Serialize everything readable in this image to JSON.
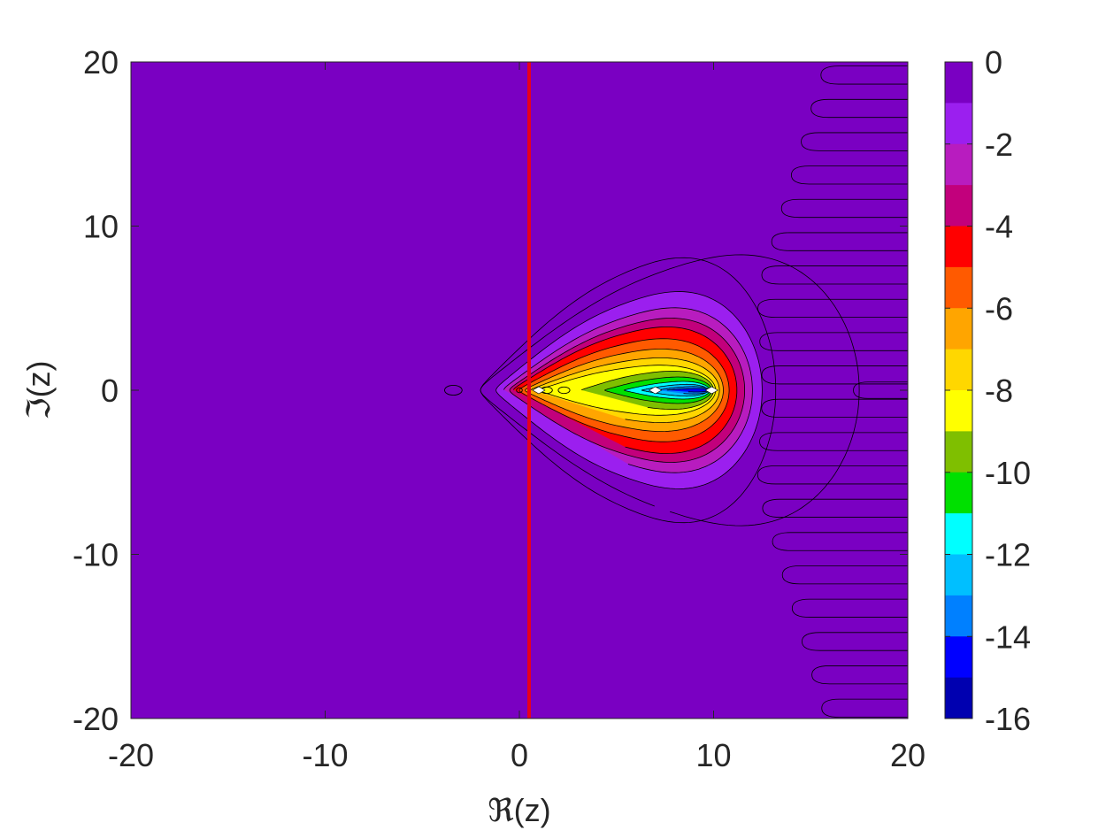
{
  "chart_data": {
    "type": "contour",
    "title": "",
    "xlabel": "ℜ(z)",
    "ylabel": "ℑ(z)",
    "xlim": [
      -20,
      20
    ],
    "ylim": [
      -20,
      20
    ],
    "xticks": [
      "-20",
      "-10",
      "0",
      "10",
      "20"
    ],
    "yticks": [
      "-20",
      "-10",
      "0",
      "10",
      "20"
    ],
    "grid": false,
    "reference_line": {
      "x": 0.5,
      "color": "#e8001c"
    },
    "colorbar": {
      "range": [
        -16,
        0
      ],
      "ticks": [
        "0",
        "-2",
        "-4",
        "-6",
        "-8",
        "-10",
        "-12",
        "-14",
        "-16"
      ],
      "levels": [
        {
          "from": 0,
          "to": -1,
          "color": "#7a00c2"
        },
        {
          "from": -1,
          "to": -2,
          "color": "#9b1fef"
        },
        {
          "from": -2,
          "to": -3,
          "color": "#b81cbf"
        },
        {
          "from": -3,
          "to": -4,
          "color": "#c2007c"
        },
        {
          "from": -4,
          "to": -5,
          "color": "#ff0000"
        },
        {
          "from": -5,
          "to": -6,
          "color": "#ff5a00"
        },
        {
          "from": -6,
          "to": -7,
          "color": "#ffa500"
        },
        {
          "from": -7,
          "to": -8,
          "color": "#ffd700"
        },
        {
          "from": -8,
          "to": -9,
          "color": "#ffff00"
        },
        {
          "from": -9,
          "to": -10,
          "color": "#7fbf00"
        },
        {
          "from": -10,
          "to": -11,
          "color": "#00e000"
        },
        {
          "from": -11,
          "to": -12,
          "color": "#00ffff"
        },
        {
          "from": -12,
          "to": -13,
          "color": "#00bfff"
        },
        {
          "from": -13,
          "to": -14,
          "color": "#0080ff"
        },
        {
          "from": -14,
          "to": -15,
          "color": "#0000ff"
        },
        {
          "from": -15,
          "to": -16,
          "color": "#0000b0"
        }
      ]
    },
    "contour_regions": [
      {
        "level": -1,
        "real_extent": [
          -2.0,
          13.2
        ],
        "imag_halfwidth": 9.0,
        "color": "#7a00c2"
      },
      {
        "level": -2,
        "real_extent": [
          -1.2,
          12.5
        ],
        "imag_halfwidth": 6.7,
        "color": "#9b1fef"
      },
      {
        "level": -3,
        "real_extent": [
          -0.8,
          12.0
        ],
        "imag_halfwidth": 5.6,
        "color": "#b81cbf"
      },
      {
        "level": -4,
        "real_extent": [
          -0.5,
          11.6
        ],
        "imag_halfwidth": 4.9,
        "color": "#c2007c"
      },
      {
        "level": -5,
        "real_extent": [
          -0.3,
          11.2
        ],
        "imag_halfwidth": 4.3,
        "color": "#ff0000"
      },
      {
        "level": -6,
        "real_extent": [
          0.0,
          10.8
        ],
        "imag_halfwidth": 3.5,
        "color": "#ff5a00"
      },
      {
        "level": -7,
        "real_extent": [
          0.3,
          10.5
        ],
        "imag_halfwidth": 2.8,
        "color": "#ffa500"
      },
      {
        "level": -8,
        "real_extent": [
          0.6,
          10.3
        ],
        "imag_halfwidth": 2.2,
        "color": "#ffd700"
      },
      {
        "level": -9,
        "real_extent": [
          1.0,
          10.1
        ],
        "imag_halfwidth": 1.7,
        "color": "#ffff00"
      },
      {
        "level": -10,
        "real_extent": [
          3.2,
          10.0
        ],
        "imag_halfwidth": 1.3,
        "color": "#7fbf00"
      },
      {
        "level": -11,
        "real_extent": [
          4.4,
          9.9
        ],
        "imag_halfwidth": 0.9,
        "color": "#00e000"
      },
      {
        "level": -12,
        "real_extent": [
          5.4,
          9.8
        ],
        "imag_halfwidth": 0.6,
        "color": "#00ffff"
      },
      {
        "level": -13,
        "real_extent": [
          6.3,
          9.7
        ],
        "imag_halfwidth": 0.4,
        "color": "#00bfff"
      },
      {
        "level": -14,
        "real_extent": [
          7.1,
          9.8
        ],
        "imag_halfwidth": 0.25,
        "color": "#0080ff"
      },
      {
        "level": -15,
        "real_extent": [
          7.6,
          9.8
        ],
        "imag_halfwidth": 0.12,
        "color": "#0000ff"
      }
    ],
    "small_features": [
      {
        "re": -3.4,
        "im": 0,
        "re_radius": 0.45,
        "im_radius": 0.3,
        "kind": "isolated-contour"
      },
      {
        "re": 0.0,
        "im": 0,
        "re_radius": 0.15,
        "im_radius": 0.15,
        "kind": "isolated-contour"
      },
      {
        "re": 1.4,
        "im": 0,
        "re_radius": 0.3,
        "im_radius": 0.2,
        "kind": "isolated-contour"
      },
      {
        "re": 2.3,
        "im": 0,
        "re_radius": 0.3,
        "im_radius": 0.2,
        "kind": "isolated-contour"
      }
    ],
    "white_points": [
      {
        "re": 1.0,
        "im": 0
      },
      {
        "re": 7.0,
        "im": 0
      },
      {
        "re": 9.9,
        "im": 0
      }
    ]
  }
}
